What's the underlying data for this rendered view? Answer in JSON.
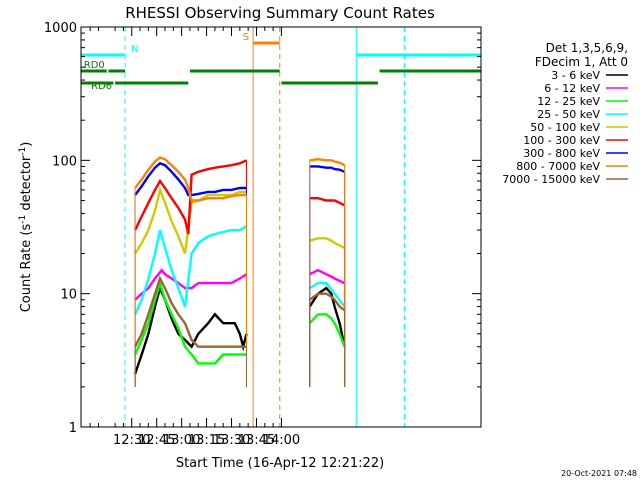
{
  "title": "RHESSI Observing Summary Count Rates",
  "xlabel": "Start Time (16-Apr-12 12:21:22)",
  "ylabel": "Count Rate (s",
  "ylabel_sup": "-1",
  "ylabel_end": " detector",
  "ylabel_end_sup": "-1",
  "ylabel_close": ")",
  "footer": "20-Oct-2021 07:48",
  "legend_header": [
    "Det 1,3,5,6,9,",
    "FDecim 1, Att 0"
  ],
  "chart_data": {
    "type": "line",
    "yscale": "log",
    "ylim": [
      1,
      1000
    ],
    "xlim_min": [
      -0.5,
      240
    ],
    "x_unit": "minutes since 12:00",
    "x_ticks": [
      "12:30",
      "12:45",
      "13:00",
      "13:15",
      "13:30",
      "13:45",
      "14:00"
    ],
    "y_ticks": [
      "1",
      "10",
      "100",
      "1000"
    ],
    "gaps": [
      [
        121,
        133
      ],
      [
        173,
        175
      ]
    ],
    "series": [
      {
        "name": "3 - 6 keV",
        "color": "#000000",
        "points": [
          [
            32,
            2.5
          ],
          [
            36,
            3.5
          ],
          [
            40,
            5
          ],
          [
            44,
            8
          ],
          [
            47,
            11
          ],
          [
            50,
            9
          ],
          [
            54,
            6.5
          ],
          [
            58,
            5
          ],
          [
            62,
            4.5
          ],
          [
            66,
            4
          ],
          [
            70,
            5
          ],
          [
            76,
            6
          ],
          [
            80,
            7
          ],
          [
            85,
            6
          ],
          [
            90,
            6
          ],
          [
            92,
            6
          ],
          [
            95,
            5
          ],
          [
            97,
            4
          ],
          [
            99,
            5
          ],
          [
            137,
            8
          ],
          [
            142,
            10
          ],
          [
            147,
            11
          ],
          [
            150,
            10
          ],
          [
            152,
            8
          ],
          [
            155,
            6
          ],
          [
            158,
            4
          ]
        ]
      },
      {
        "name": "6 - 12 keV",
        "color": "#ff00ff",
        "points": [
          [
            32,
            9
          ],
          [
            36,
            10
          ],
          [
            40,
            11
          ],
          [
            44,
            13
          ],
          [
            48,
            15
          ],
          [
            50,
            14
          ],
          [
            54,
            13
          ],
          [
            58,
            12
          ],
          [
            62,
            11
          ],
          [
            66,
            11
          ],
          [
            70,
            12
          ],
          [
            76,
            12
          ],
          [
            80,
            12
          ],
          [
            85,
            12
          ],
          [
            90,
            12
          ],
          [
            95,
            13
          ],
          [
            99,
            14
          ],
          [
            137,
            14
          ],
          [
            142,
            15
          ],
          [
            147,
            14
          ],
          [
            152,
            13
          ],
          [
            158,
            12
          ]
        ]
      },
      {
        "name": "12 - 25 keV",
        "color": "#00ff00",
        "points": [
          [
            32,
            3.5
          ],
          [
            36,
            4.5
          ],
          [
            40,
            6
          ],
          [
            44,
            9
          ],
          [
            47,
            12
          ],
          [
            50,
            9
          ],
          [
            54,
            7
          ],
          [
            58,
            5.5
          ],
          [
            62,
            4
          ],
          [
            66,
            3.5
          ],
          [
            70,
            3
          ],
          [
            76,
            3
          ],
          [
            80,
            3
          ],
          [
            85,
            3.5
          ],
          [
            90,
            3.5
          ],
          [
            95,
            3.5
          ],
          [
            99,
            3.5
          ],
          [
            137,
            6
          ],
          [
            142,
            7
          ],
          [
            147,
            7
          ],
          [
            150,
            6.5
          ],
          [
            152,
            6
          ],
          [
            155,
            5
          ],
          [
            158,
            4
          ]
        ]
      },
      {
        "name": "25 - 50 keV",
        "color": "#00ffff",
        "points": [
          [
            32,
            7
          ],
          [
            36,
            9
          ],
          [
            40,
            13
          ],
          [
            44,
            20
          ],
          [
            47,
            30
          ],
          [
            50,
            22
          ],
          [
            54,
            15
          ],
          [
            58,
            11
          ],
          [
            62,
            8
          ],
          [
            66,
            20
          ],
          [
            70,
            24
          ],
          [
            76,
            27
          ],
          [
            80,
            28
          ],
          [
            85,
            29
          ],
          [
            90,
            30
          ],
          [
            95,
            30
          ],
          [
            99,
            32
          ],
          [
            137,
            11
          ],
          [
            142,
            12
          ],
          [
            147,
            12
          ],
          [
            152,
            10
          ],
          [
            158,
            8
          ]
        ]
      },
      {
        "name": "50 - 100 keV",
        "color": "#cccc00",
        "points": [
          [
            32,
            20
          ],
          [
            36,
            24
          ],
          [
            40,
            30
          ],
          [
            44,
            42
          ],
          [
            47,
            60
          ],
          [
            50,
            48
          ],
          [
            54,
            35
          ],
          [
            58,
            27
          ],
          [
            62,
            20
          ],
          [
            66,
            48
          ],
          [
            70,
            50
          ],
          [
            76,
            55
          ],
          [
            80,
            55
          ],
          [
            85,
            55
          ],
          [
            90,
            55
          ],
          [
            95,
            58
          ],
          [
            99,
            58
          ],
          [
            137,
            25
          ],
          [
            142,
            26
          ],
          [
            147,
            26
          ],
          [
            150,
            25
          ],
          [
            152,
            24
          ],
          [
            155,
            23
          ],
          [
            158,
            22
          ]
        ]
      },
      {
        "name": "100 - 300 keV",
        "color": "#ff0000",
        "points": [
          [
            32,
            30
          ],
          [
            36,
            38
          ],
          [
            40,
            48
          ],
          [
            44,
            60
          ],
          [
            47,
            70
          ],
          [
            50,
            62
          ],
          [
            54,
            52
          ],
          [
            58,
            44
          ],
          [
            62,
            36
          ],
          [
            64,
            28
          ],
          [
            66,
            78
          ],
          [
            70,
            82
          ],
          [
            76,
            86
          ],
          [
            80,
            88
          ],
          [
            85,
            90
          ],
          [
            90,
            92
          ],
          [
            95,
            95
          ],
          [
            99,
            100
          ],
          [
            137,
            52
          ],
          [
            142,
            52
          ],
          [
            147,
            50
          ],
          [
            150,
            50
          ],
          [
            152,
            50
          ],
          [
            155,
            48
          ],
          [
            158,
            46
          ]
        ]
      },
      {
        "name": "300 - 800 keV",
        "color": "#0000ff",
        "points": [
          [
            32,
            55
          ],
          [
            36,
            64
          ],
          [
            40,
            76
          ],
          [
            44,
            88
          ],
          [
            47,
            95
          ],
          [
            50,
            92
          ],
          [
            54,
            82
          ],
          [
            58,
            72
          ],
          [
            62,
            62
          ],
          [
            64,
            55
          ],
          [
            66,
            55
          ],
          [
            70,
            56
          ],
          [
            76,
            58
          ],
          [
            80,
            58
          ],
          [
            85,
            60
          ],
          [
            90,
            60
          ],
          [
            95,
            62
          ],
          [
            99,
            62
          ],
          [
            137,
            90
          ],
          [
            142,
            90
          ],
          [
            147,
            88
          ],
          [
            150,
            88
          ],
          [
            152,
            86
          ],
          [
            155,
            85
          ],
          [
            158,
            82
          ]
        ]
      },
      {
        "name": "800 - 7000 keV",
        "color": "#ff8000",
        "points": [
          [
            32,
            62
          ],
          [
            36,
            72
          ],
          [
            40,
            85
          ],
          [
            44,
            98
          ],
          [
            47,
            105
          ],
          [
            50,
            102
          ],
          [
            54,
            92
          ],
          [
            58,
            82
          ],
          [
            62,
            72
          ],
          [
            64,
            62
          ],
          [
            66,
            50
          ],
          [
            70,
            50
          ],
          [
            76,
            52
          ],
          [
            80,
            52
          ],
          [
            85,
            52
          ],
          [
            90,
            54
          ],
          [
            95,
            55
          ],
          [
            99,
            55
          ],
          [
            137,
            100
          ],
          [
            142,
            102
          ],
          [
            147,
            100
          ],
          [
            150,
            100
          ],
          [
            152,
            98
          ],
          [
            155,
            96
          ],
          [
            158,
            92
          ]
        ]
      },
      {
        "name": "7000 - 15000 keV",
        "color": "#996633",
        "points": [
          [
            32,
            4
          ],
          [
            36,
            5
          ],
          [
            40,
            7
          ],
          [
            44,
            10
          ],
          [
            47,
            13
          ],
          [
            50,
            11
          ],
          [
            54,
            8.5
          ],
          [
            58,
            7
          ],
          [
            62,
            6
          ],
          [
            66,
            4.5
          ],
          [
            70,
            4
          ],
          [
            76,
            4
          ],
          [
            80,
            4
          ],
          [
            85,
            4
          ],
          [
            90,
            4
          ],
          [
            95,
            4
          ],
          [
            99,
            4
          ],
          [
            137,
            9
          ],
          [
            142,
            10
          ],
          [
            147,
            10
          ],
          [
            150,
            9.5
          ],
          [
            152,
            9
          ],
          [
            155,
            8
          ],
          [
            158,
            7.5
          ]
        ]
      }
    ],
    "annotations": {
      "bars": [
        {
          "label": "N",
          "color": "#00ffff",
          "x0": -0.5,
          "x1": 26,
          "level": 0.93
        },
        {
          "label": "",
          "color": "#00ffff",
          "x0": 165,
          "x1": 240,
          "level": 0.93
        },
        {
          "label": "S",
          "color": "#ff8000",
          "x0": 103,
          "x1": 119,
          "level": 0.96
        },
        {
          "label": "RD0",
          "color": "#008000",
          "x0": -0.5,
          "x1": 15,
          "level": 0.89
        },
        {
          "label": "",
          "color": "#008000",
          "x0": 16,
          "x1": 26,
          "level": 0.89
        },
        {
          "label": "",
          "color": "#008000",
          "x0": 65,
          "x1": 119,
          "level": 0.89
        },
        {
          "label": "",
          "color": "#008000",
          "x0": 179,
          "x1": 240,
          "level": 0.89
        },
        {
          "label": "RD6",
          "color": "#008000",
          "x0": -0.5,
          "x1": 19,
          "level": 0.86
        },
        {
          "label": "",
          "color": "#008000",
          "x0": 20,
          "x1": 64,
          "level": 0.86
        },
        {
          "label": "",
          "color": "#008000",
          "x0": 120,
          "x1": 178,
          "level": 0.86
        }
      ],
      "vlines": [
        {
          "x": -0.5,
          "color": "#00ffff",
          "dash": false
        },
        {
          "x": 26,
          "color": "#00ffff",
          "dash": true
        },
        {
          "x": 103,
          "color": "#ff8000",
          "dash": false
        },
        {
          "x": 119,
          "color": "#ff8000",
          "dash": true
        },
        {
          "x": 165,
          "color": "#00ffff",
          "dash": false
        },
        {
          "x": 194,
          "color": "#00ffff",
          "dash": true
        }
      ]
    }
  }
}
